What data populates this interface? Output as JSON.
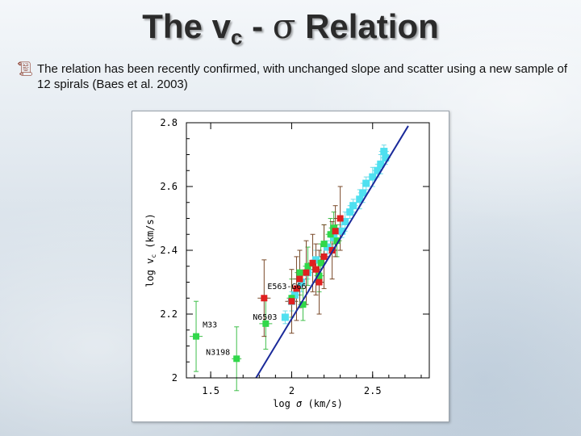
{
  "slide": {
    "title_main": "The v",
    "title_sub": "c",
    "title_dash": " - ",
    "title_sigma": "σ",
    "title_rest": " Relation",
    "bullet_icon": "scroll-bullet-icon",
    "bullet_text": "The relation has been recently confirmed, with unchanged slope and scatter using a new sample of 12 spirals (Baes et al. 2003)"
  },
  "colors": {
    "cyan": "#4fe0f0",
    "green": "#30d84a",
    "red": "#e02020",
    "fit_line": "#1a2a9a",
    "err_cyan": "#6fdce8",
    "err_green": "#3fbf4a",
    "err_brown": "#7a4a2a"
  },
  "chart_data": {
    "type": "scatter",
    "xlabel_prefix": "log",
    "xlabel_sym": "σ",
    "xlabel_unit": "(km/s)",
    "ylabel_prefix": "log",
    "ylabel_sym": "v",
    "ylabel_sub": "c",
    "ylabel_unit": "(km/s)",
    "xlim": [
      1.35,
      2.85
    ],
    "ylim": [
      2.0,
      2.8
    ],
    "x_ticks": [
      {
        "v": 1.5,
        "label": "1.5"
      },
      {
        "v": 2.0,
        "label": "2"
      },
      {
        "v": 2.5,
        "label": "2.5"
      }
    ],
    "y_ticks": [
      {
        "v": 2.0,
        "label": "2"
      },
      {
        "v": 2.2,
        "label": "2.2"
      },
      {
        "v": 2.4,
        "label": "2.4"
      },
      {
        "v": 2.6,
        "label": "2.6"
      },
      {
        "v": 2.8,
        "label": "2.8"
      }
    ],
    "fit_line": {
      "x": [
        1.78,
        2.72
      ],
      "y": [
        2.0,
        2.79
      ]
    },
    "annotations": [
      {
        "text": "E563-G66",
        "x": 1.85,
        "y": 2.278
      },
      {
        "text": "M33",
        "x": 1.45,
        "y": 2.158
      },
      {
        "text": "N6503",
        "x": 1.76,
        "y": 2.182
      },
      {
        "text": "N3198",
        "x": 1.47,
        "y": 2.072
      }
    ],
    "series": [
      {
        "kind": "cyan",
        "points": [
          {
            "x": 2.57,
            "y": 2.71,
            "ex": 0.03,
            "ey": 0.02
          },
          {
            "x": 2.58,
            "y": 2.69,
            "ex": 0.03,
            "ey": 0.02
          },
          {
            "x": 2.55,
            "y": 2.67,
            "ex": 0.02,
            "ey": 0.03
          },
          {
            "x": 2.53,
            "y": 2.65,
            "ex": 0.03,
            "ey": 0.02
          },
          {
            "x": 2.5,
            "y": 2.63,
            "ex": 0.03,
            "ey": 0.03
          },
          {
            "x": 2.46,
            "y": 2.61,
            "ex": 0.02,
            "ey": 0.02
          },
          {
            "x": 2.44,
            "y": 2.58,
            "ex": 0.03,
            "ey": 0.03
          },
          {
            "x": 2.42,
            "y": 2.56,
            "ex": 0.02,
            "ey": 0.03
          },
          {
            "x": 2.38,
            "y": 2.54,
            "ex": 0.03,
            "ey": 0.02
          },
          {
            "x": 2.36,
            "y": 2.52,
            "ex": 0.03,
            "ey": 0.02
          },
          {
            "x": 2.33,
            "y": 2.49,
            "ex": 0.02,
            "ey": 0.03
          },
          {
            "x": 2.31,
            "y": 2.46,
            "ex": 0.03,
            "ey": 0.02
          },
          {
            "x": 2.26,
            "y": 2.44,
            "ex": 0.03,
            "ey": 0.03
          },
          {
            "x": 2.22,
            "y": 2.41,
            "ex": 0.02,
            "ey": 0.02
          },
          {
            "x": 2.15,
            "y": 2.37,
            "ex": 0.03,
            "ey": 0.03
          },
          {
            "x": 2.1,
            "y": 2.33,
            "ex": 0.03,
            "ey": 0.02
          },
          {
            "x": 2.06,
            "y": 2.3,
            "ex": 0.02,
            "ey": 0.03
          },
          {
            "x": 2.02,
            "y": 2.26,
            "ex": 0.03,
            "ey": 0.02
          },
          {
            "x": 2.0,
            "y": 2.24,
            "ex": 0.03,
            "ey": 0.03
          },
          {
            "x": 1.96,
            "y": 2.19,
            "ex": 0.02,
            "ey": 0.02
          }
        ]
      },
      {
        "kind": "green",
        "points": [
          {
            "x": 1.41,
            "y": 2.13,
            "ex": 0.04,
            "ey": 0.11
          },
          {
            "x": 1.66,
            "y": 2.06,
            "ex": 0.03,
            "ey": 0.1
          },
          {
            "x": 1.84,
            "y": 2.17,
            "ex": 0.04,
            "ey": 0.08
          },
          {
            "x": 2.0,
            "y": 2.25,
            "ex": 0.03,
            "ey": 0.06
          },
          {
            "x": 2.07,
            "y": 2.23,
            "ex": 0.03,
            "ey": 0.05
          },
          {
            "x": 2.05,
            "y": 2.33,
            "ex": 0.03,
            "ey": 0.07
          },
          {
            "x": 2.1,
            "y": 2.35,
            "ex": 0.03,
            "ey": 0.06
          },
          {
            "x": 2.17,
            "y": 2.32,
            "ex": 0.03,
            "ey": 0.05
          },
          {
            "x": 2.18,
            "y": 2.36,
            "ex": 0.03,
            "ey": 0.06
          },
          {
            "x": 2.2,
            "y": 2.42,
            "ex": 0.03,
            "ey": 0.06
          },
          {
            "x": 2.24,
            "y": 2.45,
            "ex": 0.03,
            "ey": 0.05
          },
          {
            "x": 2.26,
            "y": 2.47,
            "ex": 0.03,
            "ey": 0.05
          },
          {
            "x": 2.28,
            "y": 2.43,
            "ex": 0.03,
            "ey": 0.05
          }
        ]
      },
      {
        "kind": "red",
        "points": [
          {
            "x": 1.83,
            "y": 2.25,
            "ex": 0.04,
            "ey": 0.12
          },
          {
            "x": 2.0,
            "y": 2.24,
            "ex": 0.04,
            "ey": 0.1
          },
          {
            "x": 2.03,
            "y": 2.28,
            "ex": 0.03,
            "ey": 0.1
          },
          {
            "x": 2.05,
            "y": 2.31,
            "ex": 0.04,
            "ey": 0.09
          },
          {
            "x": 2.09,
            "y": 2.33,
            "ex": 0.03,
            "ey": 0.1
          },
          {
            "x": 2.13,
            "y": 2.36,
            "ex": 0.03,
            "ey": 0.09
          },
          {
            "x": 2.15,
            "y": 2.34,
            "ex": 0.04,
            "ey": 0.08
          },
          {
            "x": 2.17,
            "y": 2.3,
            "ex": 0.03,
            "ey": 0.1
          },
          {
            "x": 2.2,
            "y": 2.38,
            "ex": 0.04,
            "ey": 0.1
          },
          {
            "x": 2.25,
            "y": 2.4,
            "ex": 0.03,
            "ey": 0.09
          },
          {
            "x": 2.3,
            "y": 2.5,
            "ex": 0.04,
            "ey": 0.1
          },
          {
            "x": 2.27,
            "y": 2.46,
            "ex": 0.03,
            "ey": 0.08
          }
        ]
      }
    ]
  }
}
